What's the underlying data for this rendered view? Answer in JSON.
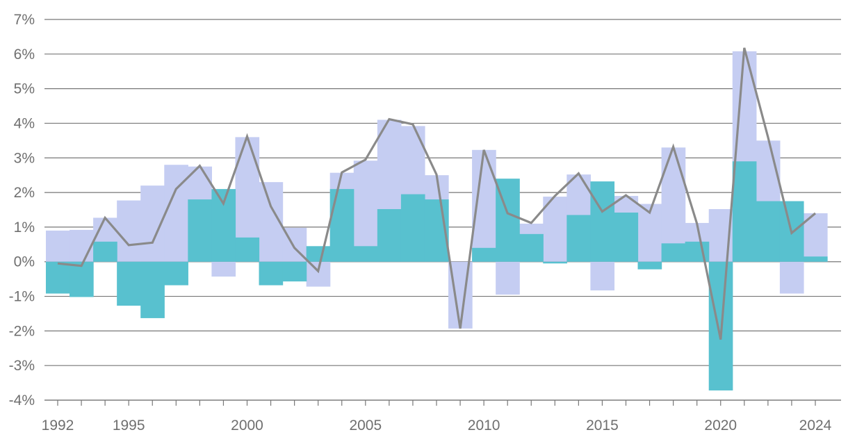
{
  "chart_data": {
    "type": "bar",
    "title": "",
    "xlabel": "",
    "ylabel": "",
    "grid": true,
    "legend": "none",
    "xlim": [
      1992,
      2024
    ],
    "ylim": [
      -4,
      7
    ],
    "y_ticks": [
      {
        "value": -4,
        "label": "-4%"
      },
      {
        "value": -3,
        "label": "-3%"
      },
      {
        "value": -2,
        "label": "-2%"
      },
      {
        "value": -1,
        "label": "-1%"
      },
      {
        "value": 0,
        "label": "0%"
      },
      {
        "value": 1,
        "label": "1%"
      },
      {
        "value": 2,
        "label": "2%"
      },
      {
        "value": 3,
        "label": "3%"
      },
      {
        "value": 4,
        "label": "4%"
      },
      {
        "value": 5,
        "label": "5%"
      },
      {
        "value": 6,
        "label": "6%"
      },
      {
        "value": 7,
        "label": "7%"
      }
    ],
    "x_ticks": [
      {
        "value": 1992,
        "label": "1992"
      },
      {
        "value": 1995,
        "label": "1995"
      },
      {
        "value": 2000,
        "label": "2000"
      },
      {
        "value": 2005,
        "label": "2005"
      },
      {
        "value": 2010,
        "label": "2010"
      },
      {
        "value": 2015,
        "label": "2015"
      },
      {
        "value": 2020,
        "label": "2020"
      },
      {
        "value": 2024,
        "label": "2024"
      }
    ],
    "years": [
      1992,
      1993,
      1994,
      1995,
      1996,
      1997,
      1998,
      1999,
      2000,
      2001,
      2002,
      2003,
      2004,
      2005,
      2006,
      2007,
      2008,
      2009,
      2010,
      2011,
      2012,
      2013,
      2014,
      2015,
      2016,
      2017,
      2018,
      2019,
      2020,
      2021,
      2022,
      2023,
      2024
    ],
    "series": [
      {
        "style": "bar",
        "color": "#c5cdf2",
        "values": [
          0.9,
          0.92,
          1.27,
          1.77,
          2.2,
          2.8,
          2.75,
          -0.43,
          3.6,
          2.3,
          0.98,
          -0.72,
          2.57,
          2.92,
          4.1,
          3.92,
          2.5,
          -1.93,
          3.23,
          -0.95,
          1.1,
          1.88,
          2.52,
          -0.83,
          1.9,
          1.67,
          3.3,
          1.12,
          1.52,
          6.08,
          3.5,
          -0.92,
          1.4
        ]
      },
      {
        "style": "bar",
        "color": "#58c1cf",
        "values": [
          -0.92,
          -1.02,
          0.58,
          -1.27,
          -1.63,
          -0.68,
          1.8,
          2.1,
          0.7,
          -0.68,
          -0.57,
          0.45,
          2.1,
          0.45,
          1.52,
          1.95,
          1.8,
          0.0,
          0.4,
          2.4,
          0.8,
          -0.05,
          1.35,
          2.32,
          1.42,
          -0.22,
          0.53,
          0.58,
          -3.72,
          2.9,
          1.75,
          1.75,
          0.15
        ]
      },
      {
        "style": "line",
        "color": "#8a8a8a",
        "values": [
          -0.05,
          -0.12,
          1.27,
          0.48,
          0.55,
          2.1,
          2.77,
          1.68,
          3.62,
          1.6,
          0.4,
          -0.27,
          2.58,
          2.95,
          4.12,
          3.97,
          2.52,
          -1.93,
          3.23,
          1.4,
          1.12,
          1.9,
          2.55,
          1.45,
          1.92,
          1.42,
          3.32,
          1.1,
          -2.25,
          6.18,
          3.6,
          0.83,
          1.4
        ]
      }
    ]
  }
}
